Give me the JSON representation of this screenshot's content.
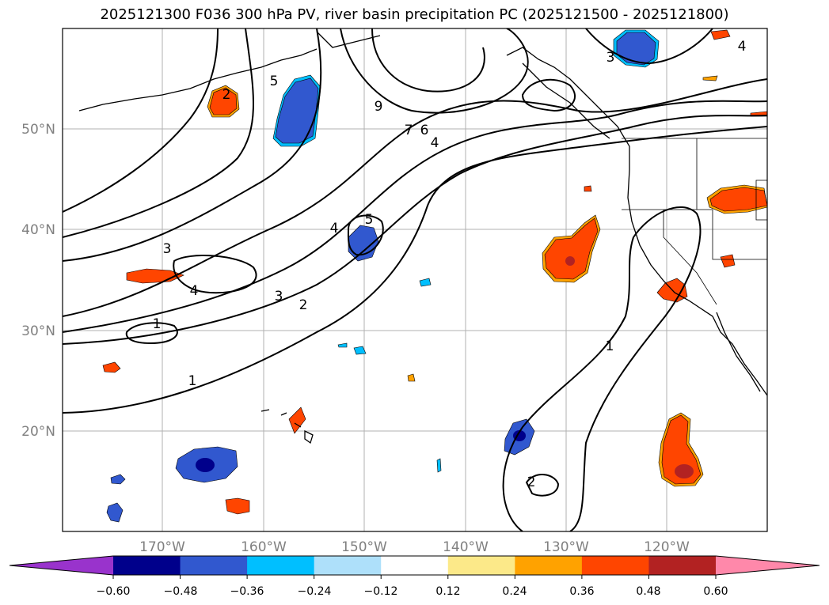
{
  "title": "2025121300 F036 300 hPa PV, river basin precipitation PC (2025121500 - 2025121800)",
  "lat_labels": [
    "50°N",
    "40°N",
    "30°N",
    "20°N"
  ],
  "lon_labels": [
    "170°W",
    "160°W",
    "150°W",
    "140°W",
    "130°W",
    "120°W"
  ],
  "colorbar": {
    "ticks": [
      "−0.60",
      "−0.48",
      "−0.36",
      "−0.24",
      "−0.12",
      "0.12",
      "0.24",
      "0.36",
      "0.48",
      "0.60"
    ],
    "colors": [
      "#9933cc",
      "#00008b",
      "#3158cf",
      "#00bfff",
      "#aee0fa",
      "#ffffff",
      "#fce989",
      "#ffa200",
      "#ff4500",
      "#b22222",
      "#ff88aa"
    ]
  },
  "contour_labels": [
    {
      "text": "9"
    },
    {
      "text": "6"
    },
    {
      "text": "4"
    },
    {
      "text": "7"
    },
    {
      "text": "5"
    },
    {
      "text": "4"
    },
    {
      "text": "3"
    },
    {
      "text": "4"
    },
    {
      "text": "3"
    },
    {
      "text": "2"
    },
    {
      "text": "1"
    },
    {
      "text": "1"
    },
    {
      "text": "1"
    },
    {
      "text": "2"
    },
    {
      "text": "3"
    },
    {
      "text": "4"
    },
    {
      "text": "2"
    },
    {
      "text": "5"
    }
  ]
}
